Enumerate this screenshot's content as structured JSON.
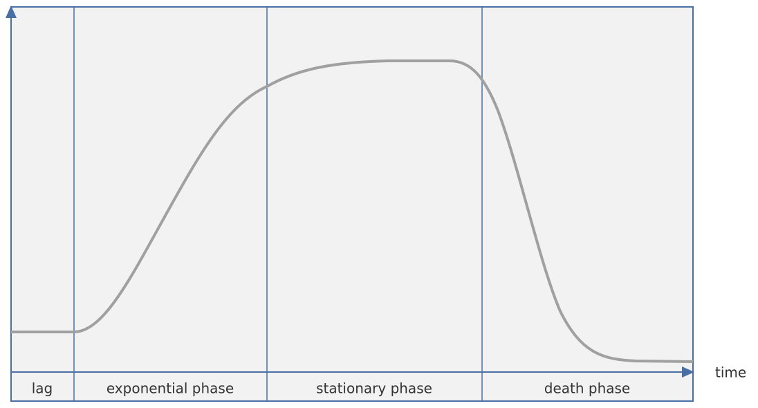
{
  "phases": [
    "lag",
    "exponential phase",
    "stationary phase",
    "death phase"
  ],
  "axis_label": "time"
}
